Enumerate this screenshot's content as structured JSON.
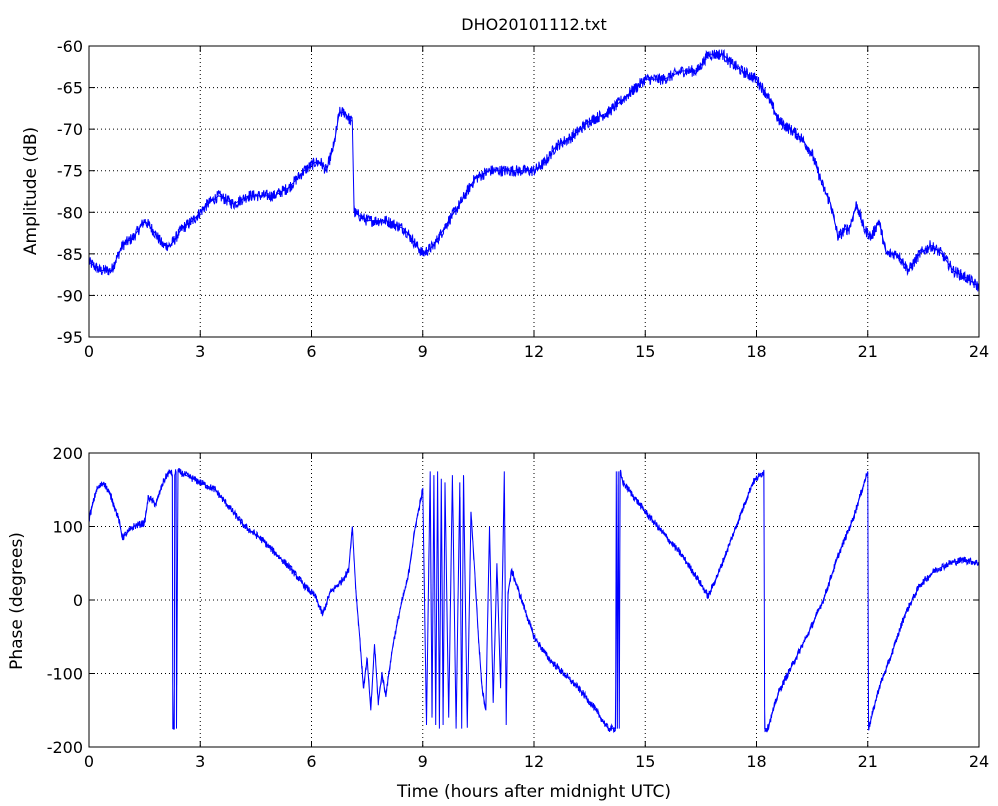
{
  "chart_data": [
    {
      "type": "line",
      "title": "DHO20101112.txt",
      "xlabel": "",
      "ylabel": "Amplitude (dB)",
      "xlim": [
        0,
        24
      ],
      "ylim": [
        -95,
        -60
      ],
      "xticks": [
        "0",
        "3",
        "6",
        "9",
        "12",
        "15",
        "18",
        "21",
        "24"
      ],
      "yticks": [
        "-95",
        "-90",
        "-85",
        "-80",
        "-75",
        "-70",
        "-65",
        "-60"
      ],
      "grid": true,
      "color": "#0000ff",
      "noise": 0.7,
      "x": [
        0,
        0.3,
        0.6,
        0.9,
        1.2,
        1.5,
        1.7,
        2.0,
        2.2,
        2.5,
        2.8,
        3.2,
        3.5,
        3.9,
        4.3,
        4.7,
        5.0,
        5.4,
        5.8,
        6.1,
        6.25,
        6.4,
        6.6,
        6.75,
        6.9,
        7.05,
        7.1,
        7.15,
        7.5,
        8.0,
        8.5,
        9.0,
        9.3,
        9.7,
        10.0,
        10.4,
        10.8,
        11.2,
        11.6,
        12.0,
        12.3,
        12.6,
        13.0,
        13.5,
        14.0,
        14.5,
        15.0,
        15.5,
        16.0,
        16.4,
        16.7,
        16.9,
        17.1,
        17.3,
        17.6,
        18.0,
        18.3,
        18.6,
        18.9,
        19.2,
        19.5,
        19.8,
        20.0,
        20.2,
        20.4,
        20.5,
        20.7,
        20.9,
        21.1,
        21.3,
        21.5,
        21.8,
        22.1,
        22.4,
        22.7,
        23.0,
        23.3,
        23.7,
        24.0
      ],
      "y": [
        -86,
        -87,
        -87,
        -84,
        -83,
        -81,
        -82,
        -84,
        -84,
        -82,
        -81,
        -79,
        -78,
        -79,
        -78,
        -78,
        -78,
        -77,
        -75,
        -74,
        -74,
        -75,
        -72,
        -68,
        -68,
        -69,
        -69,
        -80,
        -81,
        -81,
        -82,
        -85,
        -84,
        -81,
        -79,
        -76,
        -75,
        -75,
        -75,
        -75,
        -74,
        -72,
        -71,
        -69,
        -68,
        -66,
        -64,
        -64,
        -63,
        -63,
        -61,
        -61,
        -61,
        -62,
        -63,
        -64,
        -66,
        -69,
        -70,
        -71,
        -73,
        -77,
        -79,
        -83,
        -82,
        -82,
        -79,
        -82,
        -83,
        -81,
        -85,
        -85,
        -87,
        -85,
        -84,
        -85,
        -87,
        -88,
        -89
      ]
    },
    {
      "type": "line",
      "title": "",
      "xlabel": "Time (hours after midnight UTC)",
      "ylabel": "Phase (degrees)",
      "xlim": [
        0,
        24
      ],
      "ylim": [
        -200,
        200
      ],
      "xticks": [
        "0",
        "3",
        "6",
        "9",
        "12",
        "15",
        "18",
        "21",
        "24"
      ],
      "yticks": [
        "-200",
        "-100",
        "0",
        "100",
        "200"
      ],
      "grid": true,
      "color": "#0000ff",
      "noise": 5,
      "x": [
        0,
        0.2,
        0.4,
        0.6,
        0.8,
        0.9,
        1.0,
        1.2,
        1.5,
        1.6,
        1.8,
        2.0,
        2.1,
        2.2,
        2.25,
        2.26,
        2.3,
        2.31,
        2.35,
        2.36,
        2.4,
        2.6,
        3.0,
        3.4,
        3.8,
        4.2,
        4.6,
        5.0,
        5.4,
        5.8,
        6.1,
        6.3,
        6.5,
        6.8,
        7.0,
        7.1,
        7.2,
        7.3,
        7.4,
        7.5,
        7.6,
        7.7,
        7.8,
        7.9,
        8.0,
        8.2,
        8.4,
        8.6,
        8.8,
        9.0,
        9.1,
        9.2,
        9.25,
        9.3,
        9.35,
        9.4,
        9.45,
        9.5,
        9.55,
        9.6,
        9.7,
        9.8,
        9.9,
        10.0,
        10.05,
        10.1,
        10.2,
        10.3,
        10.4,
        10.5,
        10.6,
        10.7,
        10.8,
        10.9,
        11.0,
        11.1,
        11.2,
        11.25,
        11.3,
        11.4,
        11.6,
        11.8,
        12.0,
        12.4,
        12.8,
        13.2,
        13.6,
        14.0,
        14.2,
        14.22,
        14.25,
        14.27,
        14.3,
        14.32,
        14.4,
        15.0,
        15.5,
        16.0,
        16.4,
        16.7,
        17.0,
        17.3,
        17.6,
        17.9,
        18.2,
        18.22,
        18.3,
        18.6,
        19.0,
        19.4,
        19.8,
        20.2,
        20.6,
        21.0,
        21.02,
        21.1,
        21.3,
        21.6,
        22.0,
        22.4,
        22.8,
        23.2,
        23.6,
        24.0
      ],
      "y": [
        110,
        150,
        160,
        140,
        110,
        85,
        90,
        100,
        105,
        140,
        130,
        160,
        170,
        175,
        170,
        -175,
        -175,
        170,
        175,
        -175,
        175,
        170,
        160,
        150,
        125,
        100,
        85,
        65,
        45,
        20,
        5,
        -20,
        10,
        25,
        40,
        100,
        10,
        -50,
        -120,
        -80,
        -150,
        -60,
        -140,
        -100,
        -130,
        -60,
        -10,
        30,
        100,
        150,
        -170,
        175,
        -160,
        170,
        -170,
        175,
        -175,
        165,
        -170,
        160,
        -160,
        170,
        -175,
        160,
        -175,
        170,
        -170,
        120,
        40,
        -50,
        -120,
        -150,
        100,
        -140,
        50,
        -120,
        175,
        -170,
        10,
        40,
        10,
        -20,
        -50,
        -80,
        -100,
        -120,
        -145,
        -175,
        -175,
        175,
        -175,
        175,
        -175,
        175,
        160,
        120,
        90,
        60,
        30,
        5,
        40,
        80,
        120,
        160,
        175,
        -175,
        -175,
        -125,
        -85,
        -45,
        0,
        60,
        110,
        175,
        -175,
        -160,
        -120,
        -80,
        -20,
        20,
        40,
        50,
        55,
        50
      ]
    }
  ]
}
